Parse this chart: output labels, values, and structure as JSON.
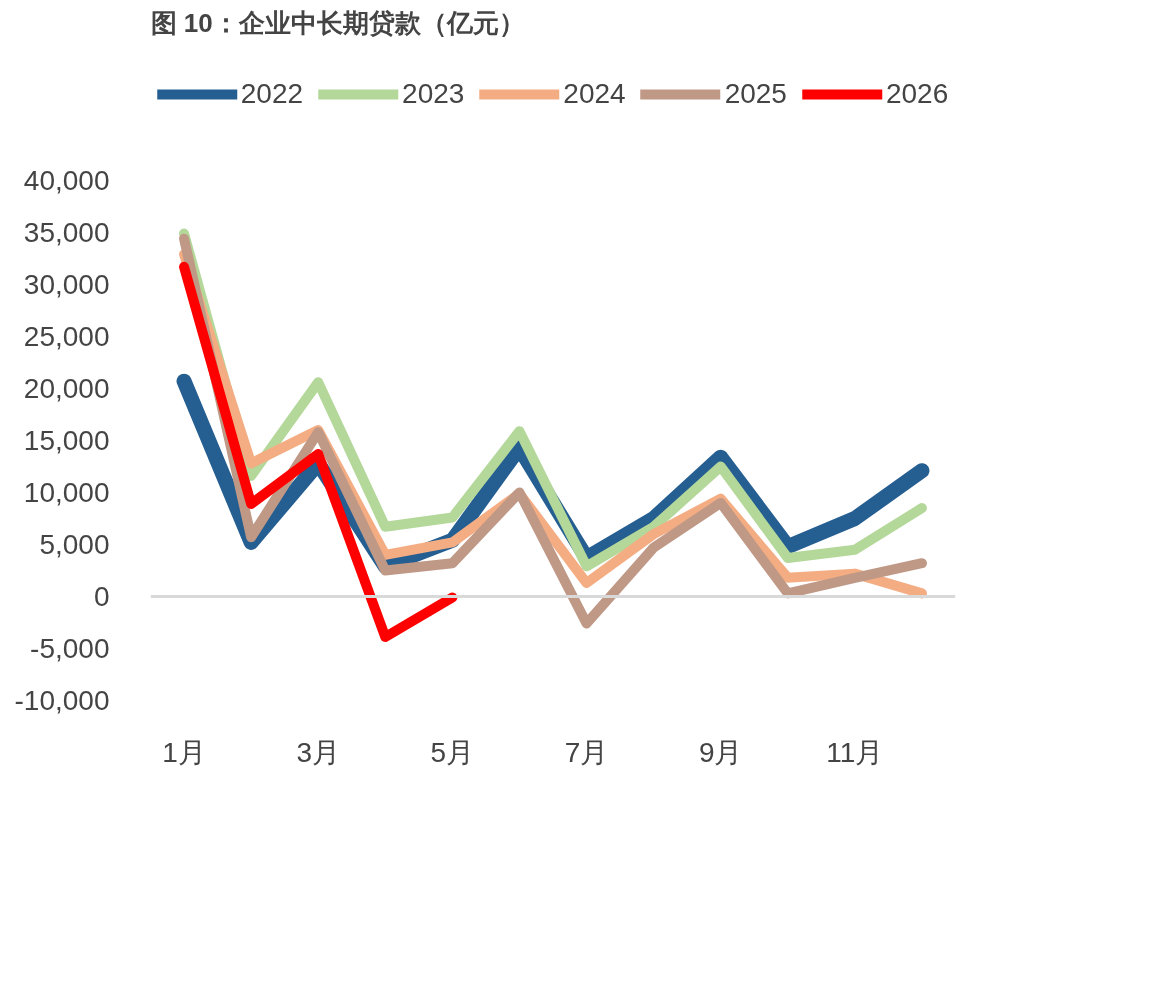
{
  "chart_data": {
    "type": "line",
    "title": "图 10：企业中长期贷款（亿元）",
    "categories": [
      "1月",
      null,
      "3月",
      null,
      "5月",
      null,
      "7月",
      null,
      "9月",
      null,
      "11月",
      null
    ],
    "series": [
      {
        "name": "2022",
        "color": "#255e91",
        "values": [
          20700,
          5200,
          12800,
          2900,
          5400,
          14300,
          3700,
          7500,
          13400,
          4800,
          7500,
          12100
        ]
      },
      {
        "name": "2023",
        "color": "#b4d79a",
        "values": [
          34900,
          11600,
          20600,
          6700,
          7600,
          15900,
          2900,
          6700,
          12500,
          3700,
          4500,
          8500
        ]
      },
      {
        "name": "2024",
        "color": "#f4ad83",
        "values": [
          32900,
          12800,
          16000,
          4000,
          5200,
          9900,
          1300,
          6000,
          9400,
          1800,
          2200,
          300
        ]
      },
      {
        "name": "2025",
        "color": "#bf9886",
        "values": [
          34400,
          5700,
          15800,
          2500,
          3200,
          10000,
          -2600,
          4700,
          9000,
          300,
          1800,
          3200
        ]
      },
      {
        "name": "2026",
        "color": "#ff0000",
        "values": [
          31700,
          8900,
          13700,
          -3900,
          -100,
          null,
          null,
          null,
          null,
          null,
          null,
          null
        ]
      }
    ],
    "ylim": [
      -10000,
      40000
    ],
    "yticks": [
      {
        "value": -10000,
        "label": "-10,000"
      },
      {
        "value": -5000,
        "label": "-5,000"
      },
      0,
      {
        "value": 5000,
        "label": "5,000"
      },
      {
        "value": 10000,
        "label": "10,000"
      },
      {
        "value": 15000,
        "label": "15,000"
      },
      {
        "value": 20000,
        "label": "20,000"
      },
      {
        "value": 25000,
        "label": "25,000"
      },
      {
        "value": 30000,
        "label": "30,000"
      },
      {
        "value": 35000,
        "label": "35,000"
      },
      {
        "value": 40000,
        "label": "40,000"
      }
    ],
    "ref_lines": [
      {
        "axis": "y",
        "value": 0,
        "color": "#d9d9d9"
      }
    ],
    "grid": false,
    "legend": "top",
    "marker": "none",
    "line_style": "solid"
  }
}
